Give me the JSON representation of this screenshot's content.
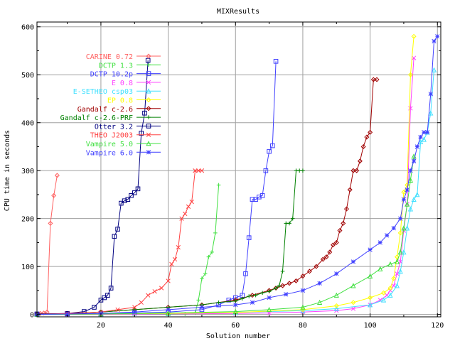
{
  "chart_data": {
    "type": "line",
    "title": "MIXResults",
    "xlabel": "Solution number",
    "ylabel": "CPU time in seconds",
    "xlim": [
      1,
      121
    ],
    "ylim": [
      -5,
      610
    ],
    "xticks": [
      20,
      40,
      60,
      80,
      100,
      120
    ],
    "yticks": [
      0,
      100,
      200,
      300,
      400,
      500,
      600
    ],
    "grid": true,
    "legend_position": "top-left",
    "series": [
      {
        "name": "CARINE 0.72",
        "color": "#ff6060",
        "marker": "diamond",
        "x": [
          1,
          2,
          3,
          4,
          5,
          6,
          7
        ],
        "y": [
          1,
          2,
          3,
          5,
          190,
          248,
          290
        ]
      },
      {
        "name": "DCTP 1.3",
        "color": "#40e040",
        "marker": "plus",
        "x": [
          1,
          10,
          20,
          30,
          40,
          45,
          48,
          49,
          50,
          51,
          52,
          53,
          54,
          55
        ],
        "y": [
          0,
          0,
          0,
          0,
          0,
          1,
          3,
          30,
          75,
          85,
          120,
          130,
          170,
          270
        ]
      },
      {
        "name": "DCTP 10.2p",
        "color": "#4040ff",
        "marker": "square",
        "x": [
          1,
          10,
          20,
          30,
          40,
          50,
          55,
          58,
          60,
          62,
          63,
          64,
          65,
          66,
          67,
          68,
          69,
          70,
          71,
          72
        ],
        "y": [
          0,
          1,
          2,
          3,
          5,
          10,
          20,
          30,
          35,
          40,
          85,
          160,
          240,
          240,
          245,
          248,
          300,
          340,
          352,
          528
        ]
      },
      {
        "name": "E 0.8",
        "color": "#ff40ff",
        "marker": "cross",
        "x": [
          1,
          20,
          40,
          60,
          70,
          80,
          90,
          95,
          100,
          103,
          105,
          106,
          107,
          108,
          109,
          110,
          111,
          112,
          113
        ],
        "y": [
          0,
          0,
          1,
          2,
          3,
          5,
          8,
          12,
          20,
          30,
          40,
          50,
          60,
          85,
          110,
          175,
          230,
          430,
          535
        ]
      },
      {
        "name": "E-SETHEO csp03",
        "color": "#40e0ff",
        "marker": "triangle",
        "x": [
          1,
          20,
          40,
          60,
          80,
          90,
          100,
          104,
          106,
          108,
          109,
          110,
          111,
          112,
          113,
          114,
          115,
          116,
          117,
          118,
          119
        ],
        "y": [
          0,
          1,
          2,
          4,
          8,
          12,
          20,
          30,
          40,
          60,
          90,
          130,
          180,
          220,
          240,
          250,
          360,
          365,
          380,
          420,
          510
        ]
      },
      {
        "name": "EP 0.8",
        "color": "#ffff00",
        "marker": "diamond",
        "x": [
          1,
          20,
          40,
          60,
          80,
          90,
          95,
          100,
          104,
          106,
          107,
          108,
          109,
          110,
          111,
          112,
          113
        ],
        "y": [
          0,
          1,
          2,
          4,
          10,
          18,
          25,
          35,
          45,
          55,
          75,
          120,
          170,
          255,
          270,
          500,
          580
        ]
      },
      {
        "name": "Gandalf c-2.6",
        "color": "#a00000",
        "marker": "diamond",
        "x": [
          1,
          10,
          20,
          30,
          40,
          50,
          60,
          65,
          70,
          72,
          74,
          76,
          78,
          80,
          82,
          84,
          86,
          87,
          88,
          89,
          90,
          91,
          92,
          93,
          94,
          95,
          96,
          97,
          98,
          99,
          100,
          101,
          102
        ],
        "y": [
          1,
          2,
          5,
          10,
          15,
          20,
          30,
          40,
          50,
          55,
          60,
          65,
          70,
          80,
          90,
          100,
          115,
          120,
          130,
          145,
          150,
          175,
          190,
          220,
          260,
          300,
          300,
          320,
          350,
          370,
          380,
          490,
          490
        ]
      },
      {
        "name": "Gandalf c-2.6-PRF",
        "color": "#008000",
        "marker": "plus",
        "x": [
          1,
          10,
          20,
          30,
          40,
          50,
          55,
          60,
          62,
          64,
          66,
          68,
          70,
          72,
          73,
          74,
          75,
          76,
          77,
          78,
          79,
          80
        ],
        "y": [
          0,
          1,
          5,
          10,
          15,
          20,
          25,
          28,
          33,
          38,
          40,
          45,
          48,
          55,
          60,
          90,
          190,
          190,
          200,
          300,
          300,
          300
        ]
      },
      {
        "name": "Otter 3.2",
        "color": "#000080",
        "marker": "square",
        "x": [
          1,
          10,
          15,
          18,
          20,
          21,
          22,
          23,
          24,
          25,
          26,
          27,
          28,
          29,
          30,
          31,
          32,
          33,
          34
        ],
        "y": [
          1,
          2,
          6,
          15,
          30,
          35,
          40,
          55,
          163,
          178,
          232,
          237,
          240,
          248,
          254,
          262,
          378,
          420,
          530
        ]
      },
      {
        "name": "THEO J2003",
        "color": "#ff4040",
        "marker": "cross",
        "x": [
          1,
          10,
          20,
          25,
          30,
          32,
          34,
          36,
          38,
          40,
          41,
          42,
          43,
          44,
          45,
          46,
          47,
          48,
          49,
          50
        ],
        "y": [
          0,
          2,
          5,
          10,
          15,
          25,
          40,
          48,
          55,
          70,
          105,
          115,
          140,
          200,
          210,
          225,
          235,
          300,
          300,
          300
        ]
      },
      {
        "name": "Vampire 5.0",
        "color": "#40e040",
        "marker": "triangle",
        "x": [
          1,
          20,
          40,
          60,
          70,
          80,
          85,
          90,
          95,
          100,
          103,
          106,
          108,
          109,
          110,
          111,
          112,
          113
        ],
        "y": [
          0,
          1,
          3,
          6,
          10,
          15,
          25,
          40,
          60,
          80,
          95,
          105,
          110,
          130,
          180,
          230,
          280,
          330
        ]
      },
      {
        "name": "Vampire 6.0",
        "color": "#4040ff",
        "marker": "star",
        "x": [
          1,
          10,
          20,
          30,
          40,
          50,
          60,
          65,
          70,
          75,
          80,
          85,
          90,
          95,
          100,
          103,
          105,
          107,
          109,
          110,
          111,
          112,
          113,
          114,
          115,
          116,
          117,
          118,
          119,
          120
        ],
        "y": [
          0,
          1,
          2,
          5,
          10,
          15,
          20,
          25,
          35,
          42,
          50,
          65,
          85,
          110,
          135,
          150,
          165,
          180,
          200,
          240,
          260,
          300,
          320,
          350,
          370,
          380,
          380,
          460,
          570,
          580
        ]
      }
    ]
  }
}
